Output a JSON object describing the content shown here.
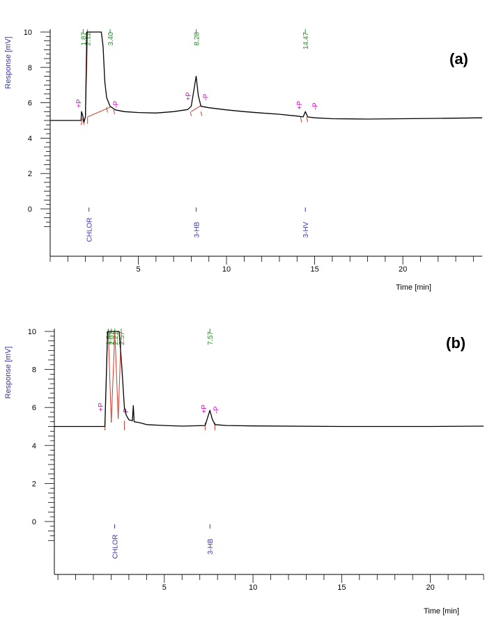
{
  "chart_data": [
    {
      "type": "line",
      "panel_label": "(a)",
      "ylabel": "Response [mV]",
      "xlabel": "Time [min]",
      "xlim": [
        0,
        24.5
      ],
      "ylim": [
        0,
        10
      ],
      "yticks": [
        0,
        2,
        4,
        6,
        8,
        10
      ],
      "xticks": [
        5,
        10,
        15,
        20
      ],
      "baseline": 5.0,
      "retention_times": [
        {
          "label": "1.87",
          "t": 1.87
        },
        {
          "label": "2.12",
          "t": 2.12
        },
        {
          "label": "3.40",
          "t": 3.4
        },
        {
          "label": "8.28",
          "t": 8.28
        },
        {
          "label": "14.47",
          "t": 14.47
        }
      ],
      "peak_names": [
        {
          "label": "CHLOR",
          "t": 2.2
        },
        {
          "label": "3-HB",
          "t": 8.28
        },
        {
          "label": "3-HV",
          "t": 14.47
        }
      ],
      "p_markers": [
        {
          "label": "+P",
          "t": 1.6,
          "y": 5.4
        },
        {
          "label": "-P",
          "t": 3.7,
          "y": 5.4
        },
        {
          "label": "+P",
          "t": 7.8,
          "y": 5.8
        },
        {
          "label": "-P",
          "t": 8.8,
          "y": 5.8
        },
        {
          "label": "+P",
          "t": 14.1,
          "y": 5.3
        },
        {
          "label": "-P",
          "t": 15.0,
          "y": 5.3
        }
      ],
      "trace": [
        [
          0,
          5.0
        ],
        [
          1.75,
          5.0
        ],
        [
          1.78,
          5.5
        ],
        [
          1.87,
          5.2
        ],
        [
          1.9,
          4.9
        ],
        [
          2.0,
          5.2
        ],
        [
          2.08,
          10
        ],
        [
          2.12,
          10
        ],
        [
          2.9,
          10
        ],
        [
          3.0,
          9.2
        ],
        [
          3.1,
          7.2
        ],
        [
          3.2,
          6.3
        ],
        [
          3.4,
          5.8
        ],
        [
          3.7,
          5.6
        ],
        [
          4.2,
          5.5
        ],
        [
          5,
          5.45
        ],
        [
          6,
          5.42
        ],
        [
          7,
          5.5
        ],
        [
          7.8,
          5.62
        ],
        [
          8.0,
          5.8
        ],
        [
          8.15,
          6.7
        ],
        [
          8.28,
          7.5
        ],
        [
          8.4,
          6.4
        ],
        [
          8.55,
          5.8
        ],
        [
          9,
          5.72
        ],
        [
          10,
          5.6
        ],
        [
          11,
          5.5
        ],
        [
          12,
          5.42
        ],
        [
          13,
          5.35
        ],
        [
          14,
          5.25
        ],
        [
          14.35,
          5.2
        ],
        [
          14.47,
          5.5
        ],
        [
          14.6,
          5.2
        ],
        [
          15,
          5.15
        ],
        [
          16,
          5.1
        ],
        [
          18,
          5.08
        ],
        [
          20,
          5.1
        ],
        [
          22,
          5.12
        ],
        [
          24.5,
          5.15
        ]
      ],
      "integration_lines": [
        [
          [
            1.75,
            4.75
          ],
          [
            1.87,
            5.2
          ]
        ],
        [
          [
            1.9,
            4.75
          ],
          [
            2.0,
            5.2
          ]
        ],
        [
          [
            2.0,
            5.2
          ],
          [
            2.12,
            10
          ]
        ],
        [
          [
            2.12,
            4.8
          ],
          [
            2.12,
            5.2
          ]
        ],
        [
          [
            3.2,
            5.75
          ],
          [
            3.25,
            5.45
          ]
        ],
        [
          [
            3.6,
            5.6
          ],
          [
            3.65,
            5.35
          ]
        ],
        [
          [
            2.12,
            5.2
          ],
          [
            3.4,
            5.75
          ]
        ],
        [
          [
            7.95,
            5.5
          ],
          [
            8.0,
            5.25
          ]
        ],
        [
          [
            8.0,
            5.5
          ],
          [
            8.55,
            5.85
          ]
        ],
        [
          [
            8.55,
            5.5
          ],
          [
            8.6,
            5.25
          ]
        ],
        [
          [
            14.2,
            5.2
          ],
          [
            14.25,
            4.9
          ]
        ],
        [
          [
            14.55,
            5.2
          ],
          [
            14.6,
            4.9
          ]
        ]
      ]
    },
    {
      "type": "line",
      "panel_label": "(b)",
      "ylabel": "Response [mV]",
      "xlabel": "Time [min]",
      "xlim": [
        -1.2,
        23
      ],
      "ylim": [
        0,
        10
      ],
      "yticks": [
        0,
        2,
        4,
        6,
        8,
        10
      ],
      "xticks": [
        5,
        10,
        15,
        20
      ],
      "baseline": 5.0,
      "retention_times": [
        {
          "label": "1.84",
          "t": 1.84
        },
        {
          "label": "2.01",
          "t": 2.01
        },
        {
          "label": "2.21",
          "t": 2.21
        },
        {
          "label": "2.57",
          "t": 2.57
        },
        {
          "label": "7.57",
          "t": 7.57
        }
      ],
      "peak_names": [
        {
          "label": "CHLOR",
          "t": 2.2
        },
        {
          "label": "3-HB",
          "t": 7.57
        }
      ],
      "p_markers": [
        {
          "label": "+P",
          "t": 1.4,
          "y": 5.5
        },
        {
          "label": "-P",
          "t": 2.8,
          "y": 5.3
        },
        {
          "label": "+P",
          "t": 7.2,
          "y": 5.4
        },
        {
          "label": "-P",
          "t": 7.9,
          "y": 5.4
        }
      ],
      "trace": [
        [
          -1.2,
          5.0
        ],
        [
          1.65,
          5.0
        ],
        [
          1.8,
          10
        ],
        [
          2.45,
          10
        ],
        [
          2.6,
          8.2
        ],
        [
          2.75,
          6.0
        ],
        [
          2.85,
          5.6
        ],
        [
          3.0,
          5.35
        ],
        [
          3.2,
          5.3
        ],
        [
          3.25,
          6.1
        ],
        [
          3.3,
          5.25
        ],
        [
          3.6,
          5.2
        ],
        [
          4,
          5.1
        ],
        [
          5,
          5.05
        ],
        [
          6,
          5.02
        ],
        [
          7.3,
          5.05
        ],
        [
          7.45,
          5.5
        ],
        [
          7.57,
          5.85
        ],
        [
          7.7,
          5.4
        ],
        [
          7.85,
          5.1
        ],
        [
          8.5,
          5.05
        ],
        [
          10,
          5.03
        ],
        [
          15,
          5.0
        ],
        [
          20,
          5.0
        ],
        [
          23,
          5.02
        ]
      ],
      "integration_lines": [
        [
          [
            1.65,
            4.8
          ],
          [
            1.8,
            10
          ]
        ],
        [
          [
            1.84,
            10
          ],
          [
            2.01,
            5.2
          ]
        ],
        [
          [
            2.01,
            5.2
          ],
          [
            2.21,
            10
          ]
        ],
        [
          [
            2.21,
            10
          ],
          [
            2.4,
            5.4
          ]
        ],
        [
          [
            2.4,
            5.4
          ],
          [
            2.57,
            10
          ]
        ],
        [
          [
            2.75,
            4.8
          ],
          [
            2.75,
            5.3
          ]
        ],
        [
          [
            7.3,
            4.8
          ],
          [
            7.3,
            5.2
          ]
        ],
        [
          [
            7.85,
            4.8
          ],
          [
            7.85,
            5.2
          ]
        ]
      ]
    }
  ]
}
